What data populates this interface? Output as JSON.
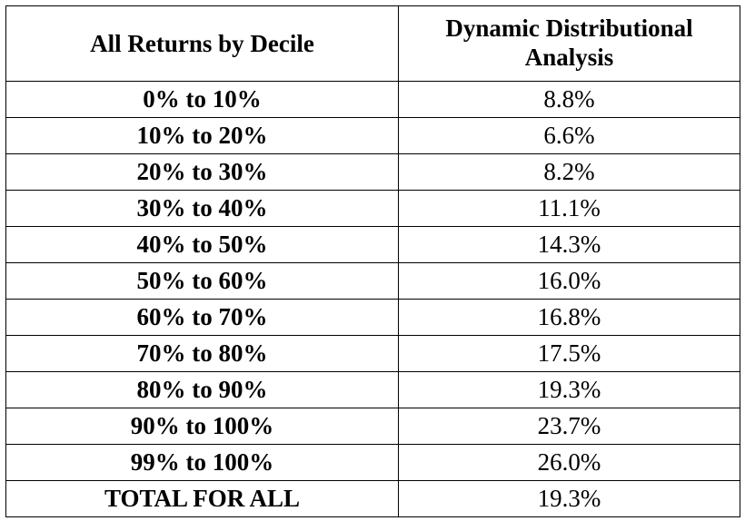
{
  "table": {
    "header": {
      "col1": "All Returns by Decile",
      "col2_line1": "Dynamic Distributional",
      "col2_line2": "Analysis"
    },
    "rows": [
      {
        "decile": "0% to 10%",
        "value": "8.8%"
      },
      {
        "decile": "10% to 20%",
        "value": "6.6%"
      },
      {
        "decile": "20% to 30%",
        "value": "8.2%"
      },
      {
        "decile": "30% to 40%",
        "value": "11.1%"
      },
      {
        "decile": "40% to 50%",
        "value": "14.3%"
      },
      {
        "decile": "50% to 60%",
        "value": "16.0%"
      },
      {
        "decile": "60% to 70%",
        "value": "16.8%"
      },
      {
        "decile": "70% to 80%",
        "value": "17.5%"
      },
      {
        "decile": "80% to 90%",
        "value": "19.3%"
      },
      {
        "decile": "90% to 100%",
        "value": "23.7%"
      },
      {
        "decile": "99% to 100%",
        "value": "26.0%"
      },
      {
        "decile": "TOTAL FOR ALL",
        "value": "19.3%"
      }
    ]
  }
}
